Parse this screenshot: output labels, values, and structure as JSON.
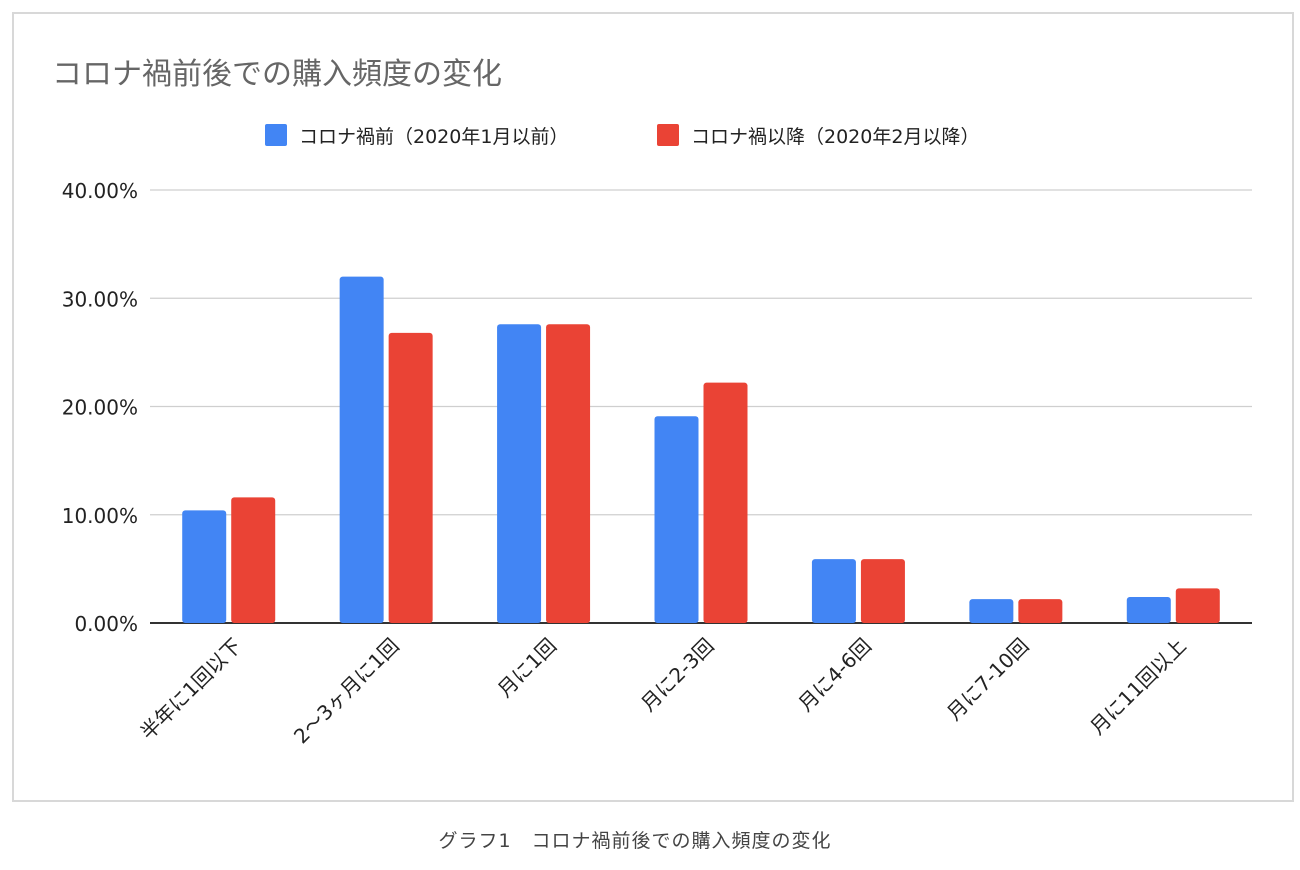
{
  "chart_data": {
    "type": "bar",
    "title": "コロナ禍前後での購入頻度の変化",
    "xlabel": "",
    "ylabel": "",
    "ylim": [
      0,
      40
    ],
    "yticks": [
      "0.00%",
      "10.00%",
      "20.00%",
      "30.00%",
      "40.00%"
    ],
    "grid": true,
    "legend_position": "top",
    "categories": [
      "半年に1回以下",
      "2〜3ヶ月に1回",
      "月に1回",
      "月に2-3回",
      "月に4-6回",
      "月に7-10回",
      "月に11回以上"
    ],
    "series": [
      {
        "name": "コロナ禍前（2020年1月以前）",
        "color": "#4285f4",
        "values": [
          10.4,
          32.0,
          27.6,
          19.1,
          5.9,
          2.2,
          2.4
        ]
      },
      {
        "name": "コロナ禍以降（2020年2月以降）",
        "color": "#ea4335",
        "values": [
          11.6,
          26.8,
          27.6,
          22.2,
          5.9,
          2.2,
          3.2
        ]
      }
    ]
  },
  "caption": "グラフ1　コロナ禍前後での購入頻度の変化"
}
